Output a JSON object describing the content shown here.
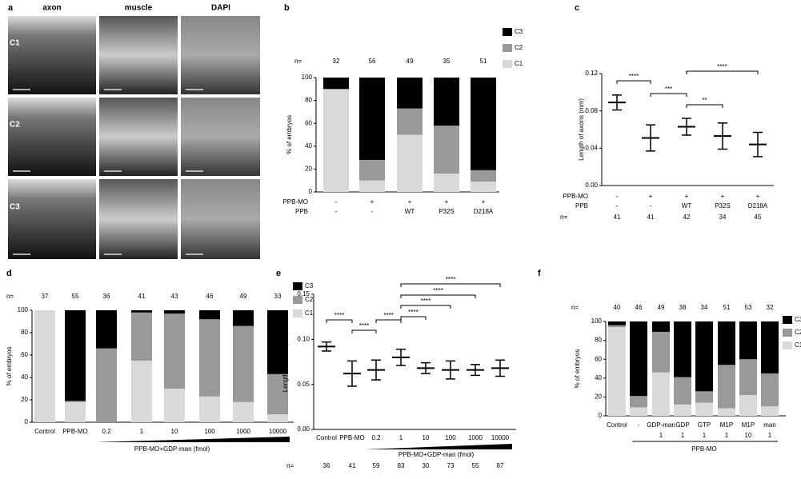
{
  "panel_a": {
    "label": "a",
    "columns": [
      "axon",
      "muscle",
      "DAPI"
    ],
    "rows": [
      "C1",
      "C2",
      "C3"
    ]
  },
  "chart_data": [
    {
      "type": "stacked_bar",
      "label": "b",
      "ylabel": "% of embryos",
      "n_label": "n=",
      "n": [
        32,
        56,
        49,
        35,
        51
      ],
      "rows": [
        {
          "name": "PPB-MO",
          "labels": [
            "-",
            "+",
            "+",
            "+",
            "+"
          ]
        },
        {
          "name": "PPB",
          "labels": [
            "-",
            "-",
            "WT",
            "P32S",
            "D218A"
          ]
        }
      ],
      "series": [
        {
          "name": "C1",
          "color": "#d9d9d9",
          "values": [
            90,
            10,
            50,
            16,
            9
          ]
        },
        {
          "name": "C2",
          "color": "#999999",
          "values": [
            0,
            18,
            23,
            42,
            10
          ]
        },
        {
          "name": "C3",
          "color": "#000000",
          "values": [
            10,
            72,
            27,
            42,
            81
          ]
        }
      ],
      "ylim": [
        0,
        100
      ],
      "yticks": [
        0,
        20,
        40,
        60,
        80,
        100
      ],
      "legend": "top-right"
    },
    {
      "type": "errorbar",
      "label": "c",
      "ylabel": "Length of axons (mm)",
      "n_label": "n=",
      "n": [
        41,
        41,
        42,
        34,
        45
      ],
      "rows": [
        {
          "name": "PPB-MO",
          "labels": [
            "-",
            "+",
            "+",
            "+",
            "+"
          ]
        },
        {
          "name": "PPB",
          "labels": [
            "-",
            "-",
            "WT",
            "P32S",
            "D218A"
          ]
        }
      ],
      "means": [
        0.089,
        0.051,
        0.063,
        0.053,
        0.044
      ],
      "sds": [
        0.008,
        0.014,
        0.009,
        0.014,
        0.013
      ],
      "color": "#000000",
      "ylim": [
        0,
        0.12
      ],
      "yticks": [
        {
          "value": 0,
          "label": "0.00"
        },
        {
          "value": 0.04,
          "label": "0.04"
        },
        {
          "value": 0.08,
          "label": "0.08"
        },
        {
          "value": 0.12,
          "label": "0.12"
        }
      ],
      "annotations": [
        "****",
        "***",
        "**",
        "****"
      ]
    },
    {
      "type": "stacked_bar",
      "label": "d",
      "ylabel": "% of embryos",
      "n_label": "n=",
      "n": [
        37,
        55,
        36,
        41,
        43,
        46,
        49,
        33
      ],
      "categories": [
        "Control",
        "PPB-MO",
        "0.2",
        "1",
        "10",
        "100",
        "1000",
        "10000"
      ],
      "group_label": "PPB-MO+GDP-man (fmol)",
      "series": [
        {
          "name": "C1",
          "color": "#d9d9d9",
          "values": [
            100,
            18,
            0,
            55,
            30,
            23,
            18,
            7
          ]
        },
        {
          "name": "C2",
          "color": "#999999",
          "values": [
            0,
            1,
            66,
            43,
            67,
            69,
            68,
            36
          ]
        },
        {
          "name": "C3",
          "color": "#000000",
          "values": [
            0,
            81,
            34,
            2,
            3,
            8,
            14,
            57
          ]
        }
      ],
      "ylim": [
        0,
        100
      ],
      "yticks": [
        0,
        20,
        40,
        60,
        80,
        100
      ],
      "legend": "top-right"
    },
    {
      "type": "errorbar",
      "label": "e",
      "ylabel": "Length of axons(mm)",
      "n_label": "n=",
      "n": [
        36,
        41,
        59,
        83,
        30,
        73,
        55,
        87
      ],
      "categories": [
        "Control",
        "PPB-MO",
        "0.2",
        "1",
        "10",
        "100",
        "1000",
        "10000"
      ],
      "group_label": "PPB-MO+GDP-man (fmol)",
      "means": [
        0.092,
        0.062,
        0.066,
        0.08,
        0.068,
        0.066,
        0.066,
        0.068
      ],
      "sds": [
        0.005,
        0.014,
        0.011,
        0.009,
        0.006,
        0.01,
        0.006,
        0.009
      ],
      "color": "#000000",
      "ylim": [
        0,
        0.15
      ],
      "yticks": [
        {
          "value": 0,
          "label": "0.00"
        },
        {
          "value": 0.05,
          "label": "0.05"
        },
        {
          "value": 0.1,
          "label": "0.10"
        },
        {
          "value": 0.15,
          "label": "0.15"
        }
      ],
      "annotations": [
        "****",
        "****",
        "****",
        "****",
        "****",
        "****",
        "****"
      ]
    },
    {
      "type": "stacked_bar",
      "label": "f",
      "ylabel": "% of embryos",
      "n_label": "n=",
      "n": [
        40,
        46,
        49,
        38,
        34,
        51,
        53,
        32
      ],
      "categories": [
        "Control",
        "-",
        "GDP-man",
        "GDP",
        "GTP",
        "M1P",
        "M1P",
        "man"
      ],
      "doses": [
        null,
        null,
        "1",
        "1",
        "1",
        "1",
        "10",
        "1"
      ],
      "group_label": "PPB-MO",
      "series": [
        {
          "name": "C1",
          "color": "#d9d9d9",
          "values": [
            94,
            9,
            46,
            12,
            14,
            8,
            22,
            10
          ]
        },
        {
          "name": "C2",
          "color": "#999999",
          "values": [
            2,
            12,
            43,
            29,
            12,
            46,
            38,
            35
          ]
        },
        {
          "name": "C3",
          "color": "#000000",
          "values": [
            4,
            79,
            11,
            59,
            74,
            46,
            40,
            55
          ]
        }
      ],
      "ylim": [
        0,
        100
      ],
      "yticks": [
        0,
        20,
        40,
        60,
        80,
        100
      ],
      "legend": "top-right"
    }
  ]
}
